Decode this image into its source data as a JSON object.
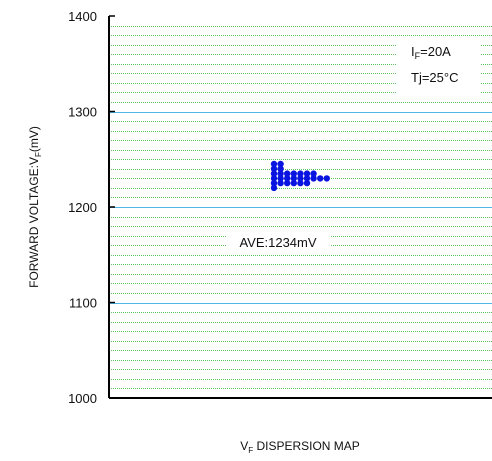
{
  "chart_data": {
    "type": "scatter",
    "ylabel": {
      "main": "FORWARD VOLTAGE:V",
      "sub": "F",
      "tail": "(mV)"
    },
    "xlabel": {
      "main": "V",
      "sub": "F",
      "tail": " DISPERSION MAP"
    },
    "ylim": [
      1000,
      1400
    ],
    "yticks": [
      "1400",
      "1300",
      "1200",
      "1100",
      "1000"
    ],
    "grid": {
      "major_step": 100,
      "minor_step": 10,
      "major_color": "#4db8e8",
      "minor_color": "#5cc45c",
      "style": "dotted"
    },
    "conditions": [
      {
        "main": "I",
        "sub": "F",
        "tail": "=20A"
      },
      {
        "main": "Tj=25°C",
        "sub": "",
        "tail": ""
      }
    ],
    "annotation": "AVE:1234mV",
    "marker_color": "#0a14e0",
    "points": [
      {
        "col": 0,
        "y": 1220
      },
      {
        "col": 0,
        "y": 1225
      },
      {
        "col": 0,
        "y": 1230
      },
      {
        "col": 0,
        "y": 1235
      },
      {
        "col": 0,
        "y": 1240
      },
      {
        "col": 0,
        "y": 1245
      },
      {
        "col": 1,
        "y": 1225
      },
      {
        "col": 1,
        "y": 1230
      },
      {
        "col": 1,
        "y": 1235
      },
      {
        "col": 1,
        "y": 1240
      },
      {
        "col": 1,
        "y": 1245
      },
      {
        "col": 2,
        "y": 1225
      },
      {
        "col": 2,
        "y": 1230
      },
      {
        "col": 2,
        "y": 1235
      },
      {
        "col": 3,
        "y": 1225
      },
      {
        "col": 3,
        "y": 1230
      },
      {
        "col": 3,
        "y": 1235
      },
      {
        "col": 4,
        "y": 1225
      },
      {
        "col": 4,
        "y": 1230
      },
      {
        "col": 4,
        "y": 1235
      },
      {
        "col": 5,
        "y": 1225
      },
      {
        "col": 5,
        "y": 1230
      },
      {
        "col": 5,
        "y": 1235
      },
      {
        "col": 6,
        "y": 1230
      },
      {
        "col": 6,
        "y": 1235
      },
      {
        "col": 7,
        "y": 1230
      },
      {
        "col": 8,
        "y": 1230
      }
    ]
  }
}
